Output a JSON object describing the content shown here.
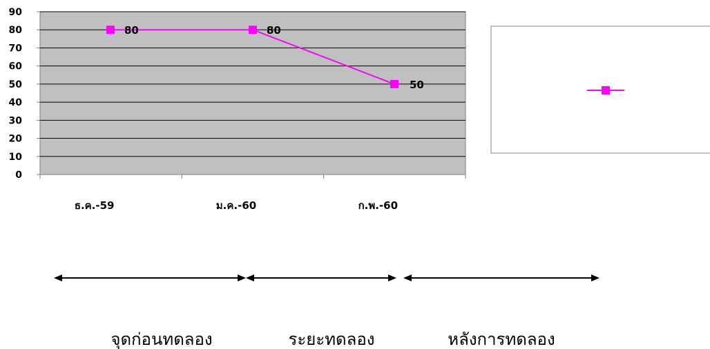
{
  "chart_data": {
    "type": "line",
    "categories": [
      "ธ.ค.-59",
      "ม.ค.-60",
      "ก.พ.-60"
    ],
    "series": [
      {
        "values": [
          80,
          80,
          50
        ],
        "color": "#ff00ff"
      }
    ],
    "ylim": [
      0,
      90
    ],
    "yticks": [
      0,
      10,
      20,
      30,
      40,
      50,
      60,
      70,
      80,
      90
    ],
    "grid": true,
    "plot_background": "#c0c0c0",
    "legend_position": "right"
  },
  "phases": [
    {
      "label": "จุดก่อนทดลอง"
    },
    {
      "label": "ระยะทดลอง"
    },
    {
      "label": "หลังการทดลอง"
    }
  ]
}
